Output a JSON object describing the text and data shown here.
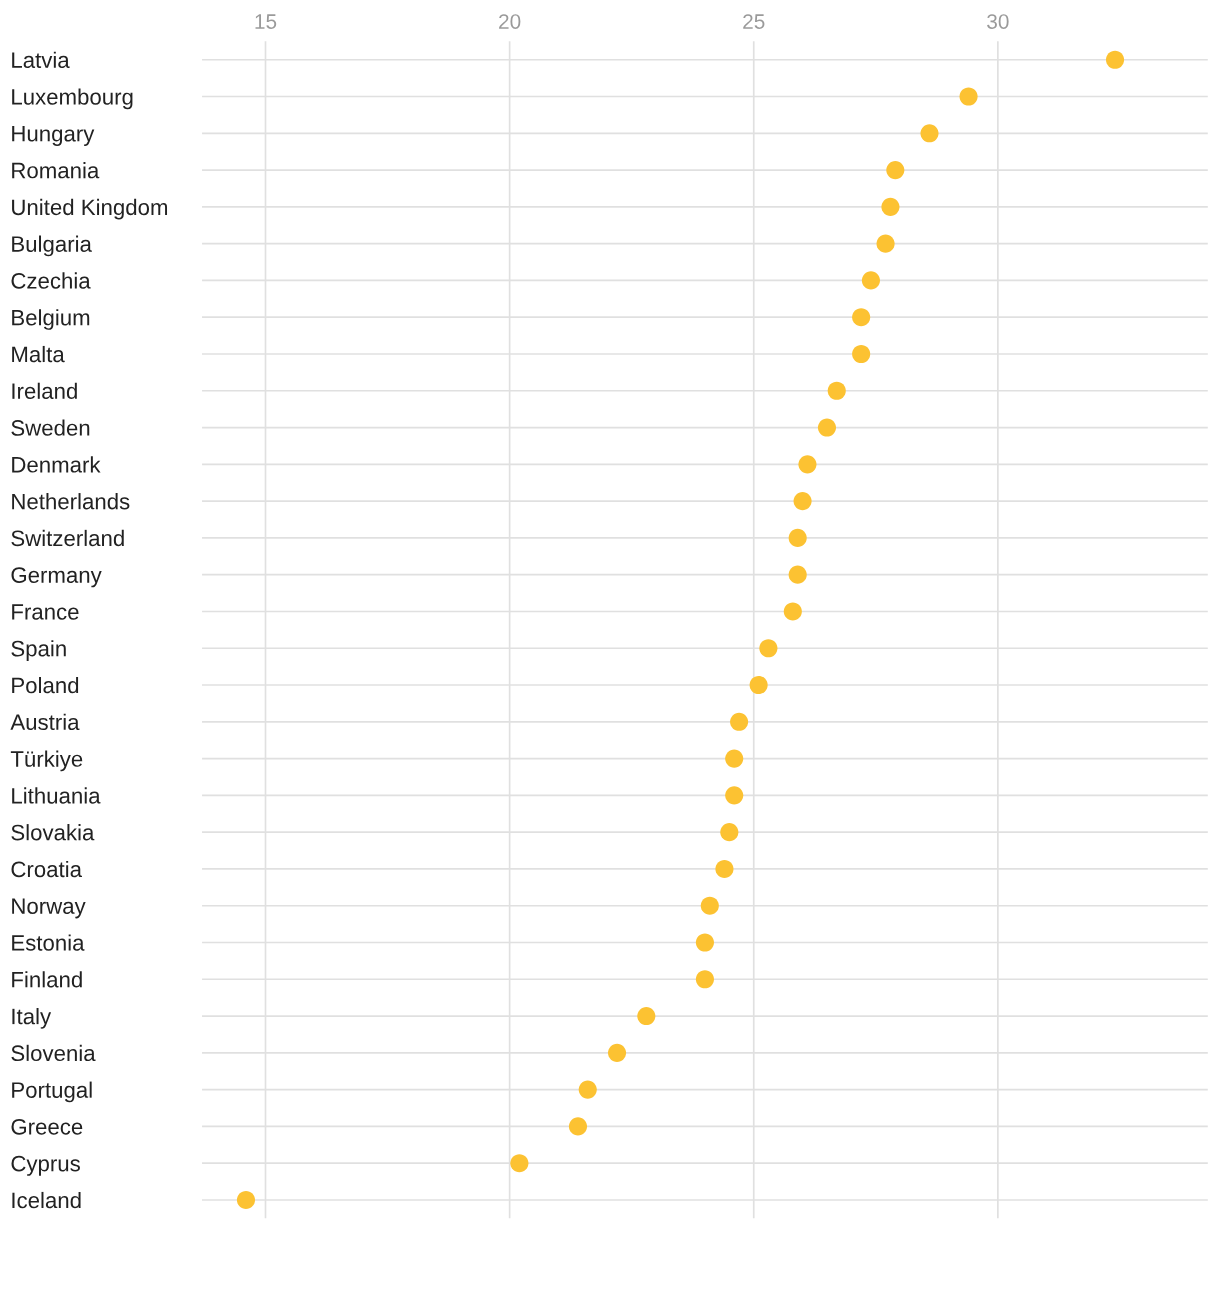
{
  "chart_data": {
    "type": "scatter",
    "orientation": "horizontal",
    "categories": [
      "Latvia",
      "Luxembourg",
      "Hungary",
      "Romania",
      "United Kingdom",
      "Bulgaria",
      "Czechia",
      "Belgium",
      "Malta",
      "Ireland",
      "Sweden",
      "Denmark",
      "Netherlands",
      "Switzerland",
      "Germany",
      "France",
      "Spain",
      "Poland",
      "Austria",
      "Türkiye",
      "Lithuania",
      "Slovakia",
      "Croatia",
      "Norway",
      "Estonia",
      "Finland",
      "Italy",
      "Slovenia",
      "Portugal",
      "Greece",
      "Cyprus",
      "Iceland"
    ],
    "series": [
      {
        "color": "#fcc232",
        "values": [
          32.4,
          29.4,
          28.6,
          27.9,
          27.8,
          27.7,
          27.4,
          27.2,
          27.2,
          26.7,
          26.5,
          26.1,
          26.0,
          25.9,
          25.9,
          25.8,
          25.3,
          25.1,
          24.7,
          24.6,
          24.6,
          24.5,
          24.4,
          24.1,
          24.0,
          24.0,
          22.8,
          22.2,
          21.6,
          21.4,
          20.2,
          14.6
        ]
      }
    ],
    "xlim": [
      13.7,
      34.3
    ],
    "xticks": [
      15,
      20,
      25,
      30
    ],
    "grid": true,
    "marker": "circle"
  }
}
